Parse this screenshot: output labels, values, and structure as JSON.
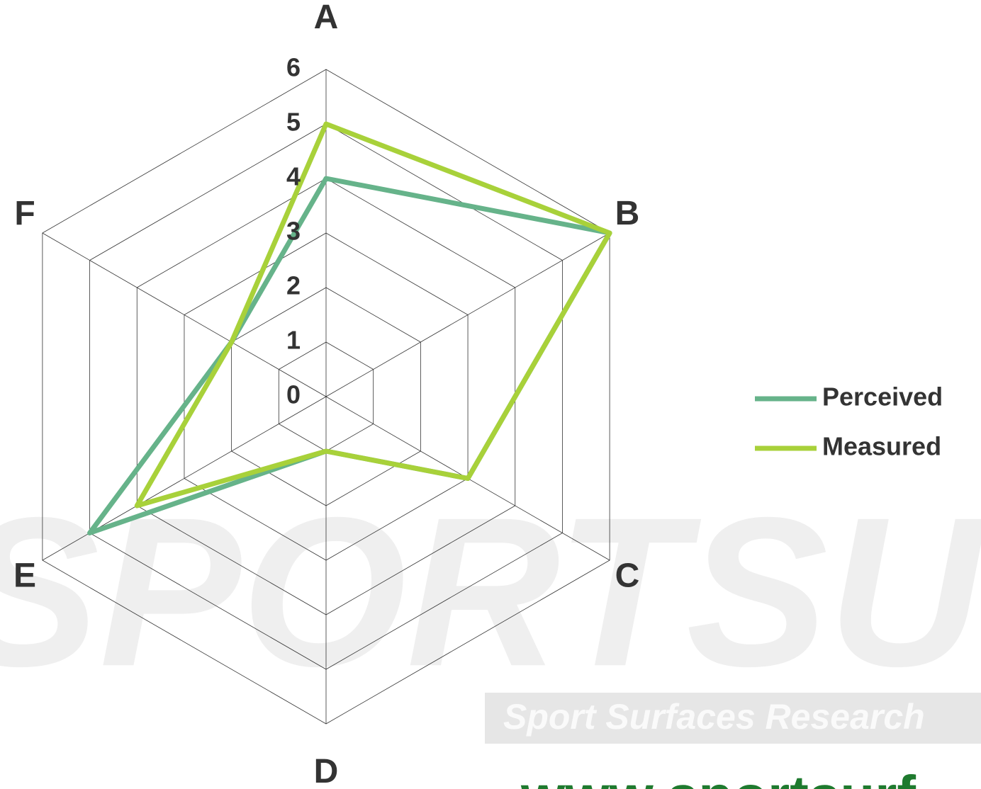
{
  "chart_data": {
    "type": "radar",
    "categories": [
      "A",
      "B",
      "C",
      "D",
      "E",
      "F"
    ],
    "series": [
      {
        "name": "Perceived",
        "color": "#66b38a",
        "values": [
          4,
          6,
          3,
          1,
          5,
          2
        ]
      },
      {
        "name": "Measured",
        "color": "#a8d13a",
        "values": [
          5,
          6,
          3,
          1,
          4,
          2
        ]
      }
    ],
    "rlim": [
      0,
      6
    ],
    "rticks": [
      0,
      1,
      2,
      3,
      4,
      5,
      6
    ],
    "grid": true,
    "legend": "right",
    "watermarks": [
      "SPORTSURF",
      "Sport Surfaces Research",
      "www.sportsurf"
    ]
  }
}
